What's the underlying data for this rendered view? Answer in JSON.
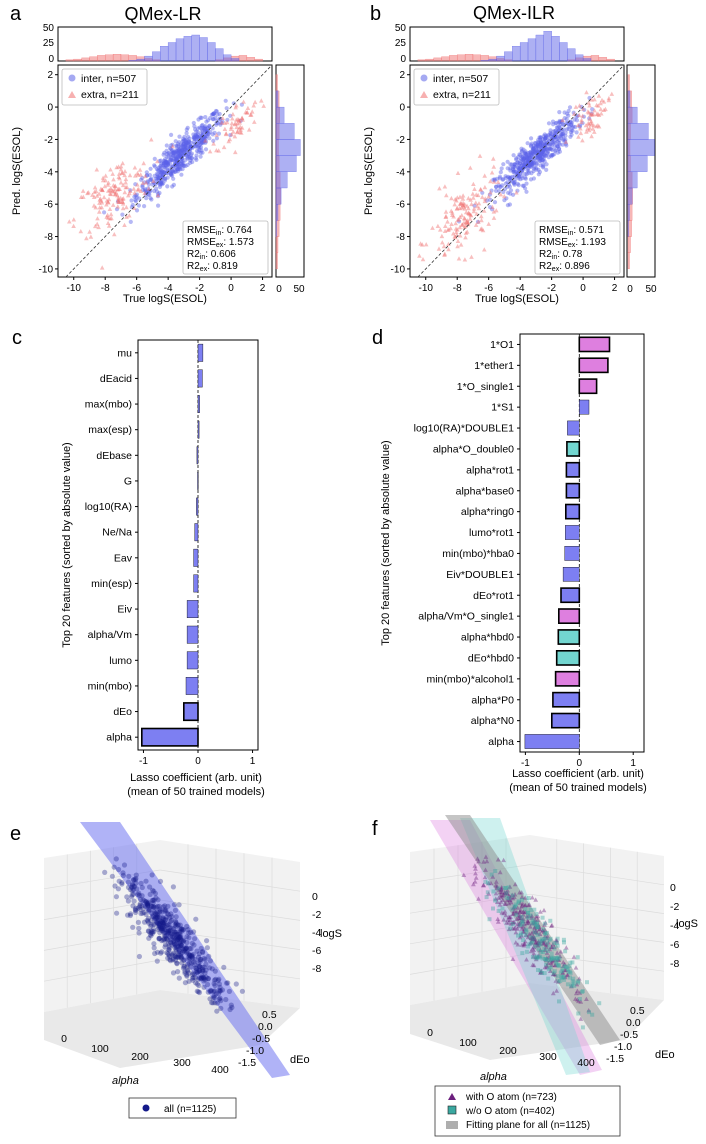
{
  "colors": {
    "inter": "#5b62e8",
    "extra": "#f07070",
    "bar_blue": "#7d7ff2",
    "bar_pink": "#de7fdf",
    "bar_teal": "#72d6d0",
    "plane_blue": "#6f74f0",
    "dark_navy": "#141a8a",
    "o_atom": "#6c1f7d",
    "no_o_atom": "#3aa8a0",
    "grey_plane": "#8c8c8c"
  },
  "panels": {
    "a": {
      "letter": "a",
      "title": "QMex-LR",
      "xlabel": "True logS(ESOL)",
      "ylabel": "Pred. logS(ESOL)",
      "xticks": [
        "-10",
        "-8",
        "-6",
        "-4",
        "-2",
        "0",
        "2"
      ],
      "yticks": [
        "-10",
        "-8",
        "-6",
        "-4",
        "-2",
        "0",
        "2"
      ],
      "hist_top_ticks": [
        "0",
        "25",
        "50"
      ],
      "hist_right_ticks": [
        "0",
        "50"
      ],
      "legend": [
        "inter, n=507",
        "extra, n=211"
      ],
      "metrics": {
        "rmse_in": "RMSE_in: 0.764",
        "rmse_ex": "RMSE_ex: 1.573",
        "r2_in": "R2_in: 0.606",
        "r2_ex": "R2_ex: 0.819"
      }
    },
    "b": {
      "letter": "b",
      "title": "QMex-ILR",
      "xlabel": "True logS(ESOL)",
      "ylabel": "Pred. logS(ESOL)",
      "xticks": [
        "-10",
        "-8",
        "-6",
        "-4",
        "-2",
        "0",
        "2"
      ],
      "yticks": [
        "-10",
        "-8",
        "-6",
        "-4",
        "-2",
        "0",
        "2"
      ],
      "hist_top_ticks": [
        "0",
        "25",
        "50"
      ],
      "hist_right_ticks": [
        "0",
        "50"
      ],
      "legend": [
        "inter, n=507",
        "extra, n=211"
      ],
      "metrics": {
        "rmse_in": "RMSE_in: 0.571",
        "rmse_ex": "RMSE_ex: 1.193",
        "r2_in": "R2_in: 0.78",
        "r2_ex": "R2_ex: 0.896"
      }
    },
    "c": {
      "letter": "c",
      "ylabel": "Top 20 features (sorted by absolute value)",
      "xlabel_line1": "Lasso coefficient (arb. unit)",
      "xlabel_line2": "(mean of 50 trained models)",
      "xticks": [
        "-1",
        "0",
        "1"
      ]
    },
    "d": {
      "letter": "d",
      "ylabel": "Top 20 features (sorted by absolute value)",
      "xlabel_line1": "Lasso coefficient (arb. unit)",
      "xlabel_line2": "(mean of 50 trained models)",
      "xticks": [
        "-1",
        "0",
        "1"
      ]
    },
    "e": {
      "letter": "e",
      "x_axis": "alpha",
      "y_axis": "dEo",
      "z_axis": "logS",
      "x_ticks": [
        "0",
        "100",
        "200",
        "300",
        "400"
      ],
      "y_ticks": [
        "0.5",
        "0.0",
        "-0.5",
        "-1.0",
        "-1.5"
      ],
      "z_ticks": [
        "0",
        "-2",
        "-4",
        "-6",
        "-8"
      ],
      "legend": [
        "all (n=1125)"
      ]
    },
    "f": {
      "letter": "f",
      "x_axis": "alpha",
      "y_axis": "dEo",
      "z_axis": "logS",
      "x_ticks": [
        "0",
        "100",
        "200",
        "300",
        "400"
      ],
      "y_ticks": [
        "0.5",
        "0.0",
        "-0.5",
        "-1.0",
        "-1.5"
      ],
      "z_ticks": [
        "0",
        "-2",
        "-4",
        "-6",
        "-8"
      ],
      "legend": [
        "with O atom (n=723)",
        "w/o O atom (n=402)",
        "Fitting plane for all (n=1125)"
      ]
    }
  },
  "chart_data": [
    {
      "type": "scatter",
      "panel": "a",
      "title": "QMex-LR",
      "xlabel": "True logS(ESOL)",
      "ylabel": "Pred. logS(ESOL)",
      "xlim": [
        -11,
        2.6
      ],
      "ylim": [
        -10.5,
        2.6
      ],
      "series": [
        {
          "name": "inter, n=507",
          "marker": "circle",
          "center": [
            -3.2,
            -3.0
          ],
          "spread": [
            1.4,
            1.3
          ]
        },
        {
          "name": "extra, n=211",
          "marker": "triangle",
          "clusters": [
            {
              "center": [
                -7.5,
                -5.5
              ],
              "spread": [
                1.2,
                1.0
              ]
            },
            {
              "center": [
                0.4,
                -1.0
              ],
              "spread": [
                0.7,
                0.6
              ]
            }
          ]
        }
      ],
      "hist_top": {
        "bins": [
          -10.5,
          -10,
          -9.5,
          -9,
          -8.5,
          -8,
          -7.5,
          -7,
          -6.5,
          -6,
          -5.5,
          -5,
          -4.5,
          -4,
          -3.5,
          -3,
          -2.5,
          -2,
          -1.5,
          -1,
          -0.5,
          0,
          0.5,
          1,
          1.5
        ],
        "inter": [
          0,
          0,
          0,
          0,
          0,
          0,
          0,
          0,
          1,
          3,
          8,
          15,
          24,
          30,
          36,
          40,
          42,
          38,
          30,
          20,
          10,
          4,
          0,
          0,
          0
        ],
        "extra": [
          2,
          3,
          5,
          7,
          9,
          10,
          11,
          10,
          9,
          7,
          4,
          2,
          0,
          0,
          0,
          0,
          0,
          0,
          0,
          2,
          5,
          8,
          9,
          6,
          3
        ]
      },
      "hist_right": {
        "bins": [
          -10,
          -9,
          -8,
          -7,
          -6,
          -5,
          -4,
          -3,
          -2,
          -1,
          0,
          1,
          2
        ],
        "inter": [
          0,
          0,
          1,
          4,
          10,
          22,
          40,
          48,
          36,
          16,
          4,
          0,
          0
        ],
        "extra": [
          3,
          4,
          6,
          8,
          9,
          8,
          6,
          5,
          6,
          7,
          6,
          3,
          0
        ]
      }
    },
    {
      "type": "scatter",
      "panel": "b",
      "title": "QMex-ILR",
      "xlabel": "True logS(ESOL)",
      "ylabel": "Pred. logS(ESOL)",
      "xlim": [
        -11,
        2.6
      ],
      "ylim": [
        -10.5,
        2.6
      ],
      "series": [
        {
          "name": "inter, n=507",
          "marker": "circle",
          "center": [
            -3.0,
            -3.0
          ],
          "spread": [
            1.3,
            1.2
          ]
        },
        {
          "name": "extra, n=211",
          "marker": "triangle",
          "clusters": [
            {
              "center": [
                -7.5,
                -6.8
              ],
              "spread": [
                1.1,
                1.1
              ]
            },
            {
              "center": [
                0.5,
                -0.5
              ],
              "spread": [
                0.6,
                0.6
              ]
            }
          ]
        }
      ],
      "hist_top": {
        "bins": [
          -10.5,
          -10,
          -9.5,
          -9,
          -8.5,
          -8,
          -7.5,
          -7,
          -6.5,
          -6,
          -5.5,
          -5,
          -4.5,
          -4,
          -3.5,
          -3,
          -2.5,
          -2,
          -1.5,
          -1,
          -0.5,
          0,
          0.5,
          1,
          1.5
        ],
        "inter": [
          0,
          0,
          0,
          0,
          0,
          0,
          0,
          0,
          1,
          3,
          8,
          15,
          24,
          30,
          36,
          42,
          48,
          40,
          30,
          20,
          10,
          4,
          0,
          0,
          0
        ],
        "extra": [
          2,
          3,
          5,
          7,
          9,
          10,
          11,
          10,
          9,
          7,
          4,
          2,
          0,
          0,
          0,
          0,
          0,
          0,
          0,
          2,
          5,
          8,
          9,
          6,
          3
        ]
      },
      "hist_right": {
        "bins": [
          -10,
          -9,
          -8,
          -7,
          -6,
          -5,
          -4,
          -3,
          -2,
          -1,
          0,
          1,
          2
        ],
        "inter": [
          0,
          0,
          1,
          3,
          8,
          18,
          38,
          52,
          40,
          18,
          4,
          0,
          0
        ],
        "extra": [
          3,
          5,
          7,
          8,
          9,
          8,
          5,
          4,
          5,
          8,
          7,
          3,
          0
        ]
      }
    },
    {
      "type": "bar",
      "orientation": "horizontal",
      "panel": "c",
      "xlabel": "Lasso coefficient (arb. unit)",
      "xlim": [
        -1.1,
        1.1
      ],
      "categories": [
        "mu",
        "dEacid",
        "max(mbo)",
        "max(esp)",
        "dEbase",
        "G",
        "log10(RA)",
        "Ne/Na",
        "Eav",
        "min(esp)",
        "Eiv",
        "alpha/Vm",
        "lumo",
        "min(mbo)",
        "dEo",
        "alpha"
      ],
      "values": [
        0.09,
        0.08,
        0.03,
        0.02,
        -0.02,
        -0.01,
        -0.03,
        -0.06,
        -0.08,
        -0.08,
        -0.2,
        -0.2,
        -0.2,
        -0.22,
        -0.26,
        -1.03
      ],
      "highlight": [
        "none",
        "none",
        "none",
        "none",
        "none",
        "none",
        "none",
        "none",
        "none",
        "none",
        "none",
        "none",
        "none",
        "none",
        "bold",
        "bold"
      ]
    },
    {
      "type": "bar",
      "orientation": "horizontal",
      "panel": "d",
      "xlabel": "Lasso coefficient (arb. unit)",
      "xlim": [
        -1.1,
        1.2
      ],
      "categories": [
        "1*O1",
        "1*ether1",
        "1*O_single1",
        "1*S1",
        "log10(RA)*DOUBLE1",
        "alpha*O_double0",
        "alpha*rot1",
        "alpha*base0",
        "alpha*ring0",
        "lumo*rot1",
        "min(mbo)*hba0",
        "Eiv*DOUBLE1",
        "dEo*rot1",
        "alpha/Vm*O_single1",
        "alpha*hbd0",
        "dEo*hbd0",
        "min(mbo)*alcohol1",
        "alpha*P0",
        "alpha*N0",
        "alpha"
      ],
      "values": [
        0.56,
        0.53,
        0.32,
        0.18,
        -0.22,
        -0.23,
        -0.24,
        -0.24,
        -0.25,
        -0.26,
        -0.27,
        -0.3,
        -0.34,
        -0.38,
        -0.39,
        -0.42,
        -0.44,
        -0.49,
        -0.51,
        -1.01
      ],
      "colors": [
        "pink",
        "pink",
        "pink",
        "blue",
        "blue",
        "teal",
        "blue",
        "blue",
        "blue",
        "blue",
        "blue",
        "blue",
        "blue",
        "pink",
        "teal",
        "teal",
        "pink",
        "blue",
        "blue",
        "blue"
      ],
      "bold": [
        true,
        true,
        true,
        false,
        false,
        true,
        true,
        true,
        true,
        false,
        false,
        false,
        true,
        true,
        true,
        true,
        true,
        true,
        true,
        false
      ]
    },
    {
      "type": "scatter",
      "panel": "e",
      "dims": 3,
      "x": "alpha",
      "y": "dEo",
      "z": "logS",
      "series": [
        {
          "name": "all (n=1125)",
          "n": 1125
        }
      ],
      "plane": "fitting plane (blue)"
    },
    {
      "type": "scatter",
      "panel": "f",
      "dims": 3,
      "x": "alpha",
      "y": "dEo",
      "z": "logS",
      "series": [
        {
          "name": "with O atom (n=723)",
          "n": 723
        },
        {
          "name": "w/o O atom (n=402)",
          "n": 402
        }
      ],
      "planes": [
        "with O atom (pink)",
        "w/o O atom (teal)",
        "Fitting plane for all (n=1125)"
      ]
    }
  ]
}
